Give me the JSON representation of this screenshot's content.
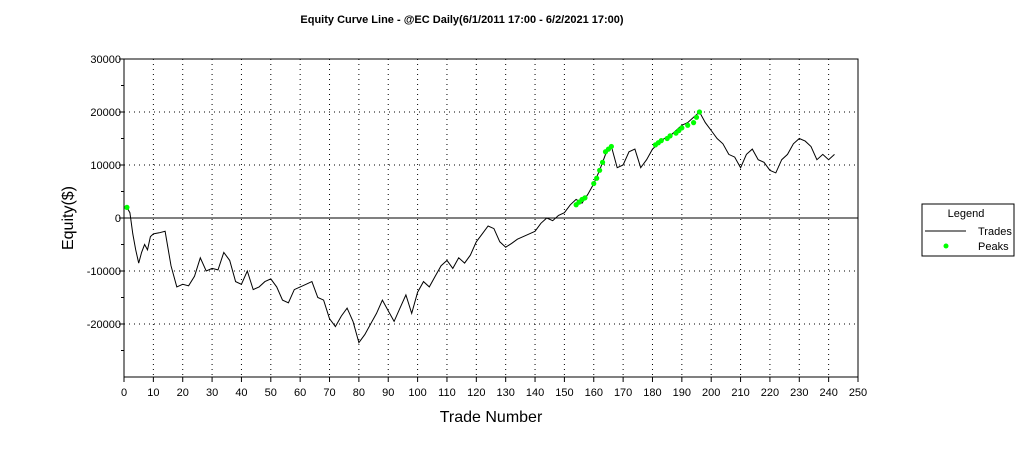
{
  "chart_data": {
    "type": "line",
    "title": "Equity Curve Line - @EC Daily(6/1/2011 17:00 - 6/2/2021 17:00)",
    "xlabel": "Trade Number",
    "ylabel": "Equity($)",
    "xlim": [
      0,
      250
    ],
    "ylim": [
      -30000,
      30000
    ],
    "x_ticks": [
      "0",
      "10",
      "20",
      "30",
      "40",
      "50",
      "60",
      "70",
      "80",
      "90",
      "100",
      "110",
      "120",
      "130",
      "140",
      "150",
      "160",
      "170",
      "180",
      "190",
      "200",
      "210",
      "220",
      "230",
      "240",
      "250"
    ],
    "y_ticks": [
      {
        "value": 30000,
        "label": "30000"
      },
      {
        "value": 20000,
        "label": "20000"
      },
      {
        "value": 10000,
        "label": "10000"
      },
      {
        "value": 0,
        "label": "0"
      },
      {
        "value": -10000,
        "label": "-10000"
      },
      {
        "value": -20000,
        "label": "-20000"
      }
    ],
    "grid": true,
    "legend_title": "Legend",
    "legend_position": "right",
    "series": [
      {
        "name": "Trades",
        "color": "#000000",
        "x": [
          1,
          2,
          3,
          4,
          5,
          6,
          7,
          8,
          9,
          10,
          12,
          14,
          16,
          18,
          20,
          22,
          24,
          26,
          28,
          30,
          32,
          34,
          36,
          38,
          40,
          42,
          44,
          46,
          48,
          50,
          52,
          54,
          56,
          58,
          60,
          62,
          64,
          66,
          68,
          70,
          72,
          74,
          76,
          78,
          80,
          82,
          84,
          86,
          88,
          90,
          92,
          94,
          96,
          98,
          100,
          102,
          104,
          106,
          108,
          110,
          112,
          114,
          116,
          118,
          120,
          122,
          124,
          126,
          128,
          130,
          132,
          134,
          136,
          138,
          140,
          142,
          144,
          146,
          148,
          150,
          152,
          154,
          156,
          158,
          160,
          162,
          164,
          166,
          168,
          170,
          172,
          174,
          176,
          178,
          180,
          182,
          184,
          186,
          188,
          190,
          192,
          194,
          196,
          198,
          200,
          202,
          204,
          206,
          208,
          210,
          212,
          214,
          216,
          218,
          220,
          222,
          224,
          226,
          228,
          230,
          232,
          234,
          236,
          238,
          240,
          242
        ],
        "y": [
          2000,
          1000,
          -3000,
          -6000,
          -8500,
          -6500,
          -5000,
          -6000,
          -3500,
          -3000,
          -2800,
          -2500,
          -9000,
          -13000,
          -12500,
          -12800,
          -11000,
          -7500,
          -10000,
          -9500,
          -9800,
          -6500,
          -8000,
          -12000,
          -12500,
          -10000,
          -13500,
          -13000,
          -12000,
          -11500,
          -13000,
          -15500,
          -16000,
          -13500,
          -13000,
          -12500,
          -12000,
          -15000,
          -15500,
          -19000,
          -20500,
          -18500,
          -17000,
          -19500,
          -23500,
          -22000,
          -20000,
          -18000,
          -15500,
          -17500,
          -19500,
          -17000,
          -14500,
          -18000,
          -14000,
          -12000,
          -13000,
          -11000,
          -9000,
          -8000,
          -9500,
          -7500,
          -8500,
          -7000,
          -4500,
          -3000,
          -1500,
          -2000,
          -4500,
          -5500,
          -4800,
          -4000,
          -3500,
          -3000,
          -2500,
          -1000,
          0,
          -500,
          500,
          1000,
          2500,
          3500,
          2800,
          4500,
          6500,
          9000,
          12000,
          13500,
          9500,
          10000,
          12500,
          13000,
          9500,
          11000,
          13000,
          14000,
          15000,
          15500,
          16500,
          17500,
          18000,
          19000,
          20000,
          18000,
          16500,
          15000,
          14000,
          12000,
          11500,
          9500,
          12000,
          13000,
          11000,
          10500,
          9000,
          8500,
          11000,
          12000,
          14000,
          15000,
          14500,
          13500,
          11000,
          12000,
          11000,
          12000
        ]
      },
      {
        "name": "Peaks",
        "color": "#00ff00",
        "x": [
          1,
          154,
          155,
          156,
          157,
          160,
          161,
          162,
          163,
          164,
          165,
          166,
          181,
          182,
          183,
          185,
          186,
          188,
          189,
          190,
          192,
          194,
          195,
          196
        ],
        "y": [
          2000,
          2500,
          3000,
          3500,
          3800,
          6500,
          7500,
          9000,
          10500,
          12500,
          13000,
          13500,
          13800,
          14200,
          14600,
          15000,
          15500,
          16000,
          16500,
          17000,
          17500,
          18000,
          19000,
          20000
        ]
      }
    ]
  }
}
